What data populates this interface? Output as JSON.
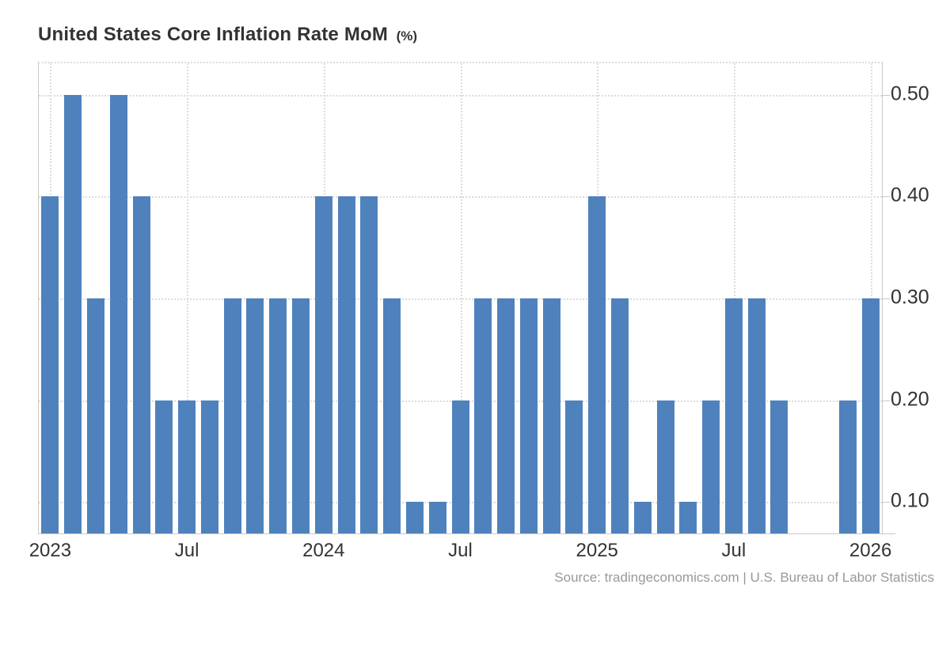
{
  "header": {
    "title": "United States Core Inflation Rate MoM",
    "unit": "(%)"
  },
  "footer": {
    "source": "Source: tradingeconomics.com | U.S. Bureau of Labor Statistics"
  },
  "colors": {
    "bar": "#4f82bc",
    "grid": "#dcdcdc",
    "axis": "#c9c9c9",
    "tick_text": "#333333",
    "title_text": "#333333",
    "source_text": "#999999"
  },
  "chart_data": {
    "type": "bar",
    "title": "United States Core Inflation Rate MoM (%)",
    "xlabel": "",
    "ylabel": "",
    "categories": [
      "2023-01",
      "2023-02",
      "2023-03",
      "2023-04",
      "2023-05",
      "2023-06",
      "2023-07",
      "2023-08",
      "2023-09",
      "2023-10",
      "2023-11",
      "2023-12",
      "2024-01",
      "2024-02",
      "2024-03",
      "2024-04",
      "2024-05",
      "2024-06",
      "2024-07",
      "2024-08",
      "2024-09",
      "2024-10",
      "2024-11",
      "2024-12",
      "2025-01",
      "2025-02",
      "2025-03",
      "2025-04",
      "2025-05",
      "2025-06",
      "2025-07",
      "2025-08",
      "2025-09",
      "2025-10",
      "2025-11",
      "2025-12",
      "2026-01"
    ],
    "values": [
      0.4,
      0.5,
      0.3,
      0.5,
      0.4,
      0.2,
      0.2,
      0.2,
      0.3,
      0.3,
      0.3,
      0.3,
      0.4,
      0.4,
      0.4,
      0.3,
      0.1,
      0.1,
      0.2,
      0.3,
      0.3,
      0.3,
      0.3,
      0.2,
      0.4,
      0.3,
      0.1,
      0.2,
      0.1,
      0.2,
      0.3,
      0.3,
      0.2,
      null,
      null,
      0.2,
      0.3
    ],
    "missing_categories": [
      "2025-10",
      "2025-11"
    ],
    "x_ticks": [
      {
        "index": 0,
        "label": "2023"
      },
      {
        "index": 6,
        "label": "Jul"
      },
      {
        "index": 12,
        "label": "2024"
      },
      {
        "index": 18,
        "label": "Jul"
      },
      {
        "index": 24,
        "label": "2025"
      },
      {
        "index": 30,
        "label": "Jul"
      },
      {
        "index": 36,
        "label": "2026"
      }
    ],
    "y_ticks": [
      {
        "value": 0.5,
        "label": "0.50"
      },
      {
        "value": 0.4,
        "label": "0.40"
      },
      {
        "value": 0.3,
        "label": "0.30"
      },
      {
        "value": 0.2,
        "label": "0.20"
      },
      {
        "value": 0.1,
        "label": "0.10"
      }
    ],
    "ylim": [
      0.069,
      0.531
    ],
    "grid": "dotted",
    "legend": "none",
    "y_axis_side": "right"
  }
}
